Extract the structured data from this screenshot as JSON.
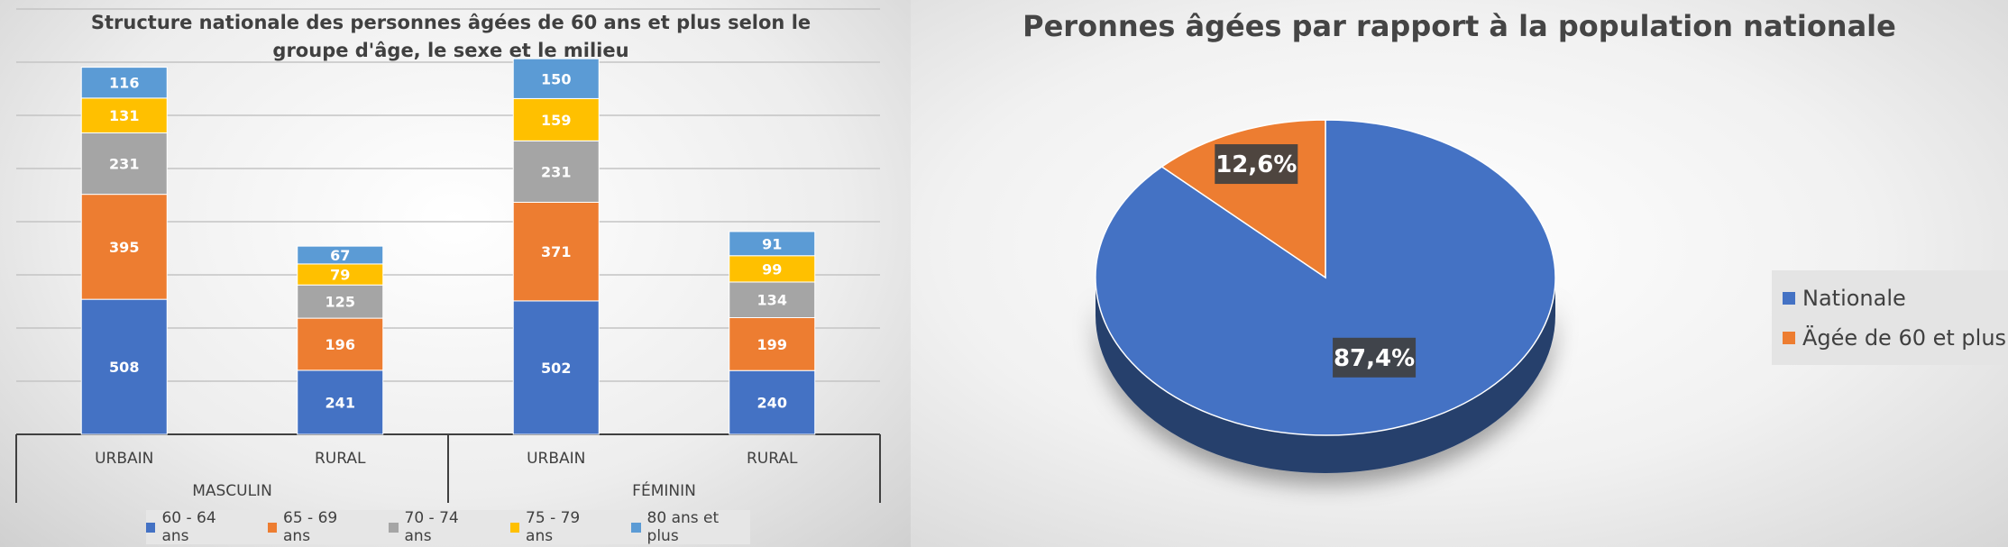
{
  "chart_data": [
    {
      "type": "bar",
      "stacked": true,
      "title": "Structure nationale des personnes âgées de 60 ans et plus selon le groupe d'âge, le sexe et le milieu",
      "categories": [
        "URBAIN",
        "RURAL",
        "URBAIN",
        "RURAL"
      ],
      "groups": [
        {
          "label": "MASCULIN",
          "categories": [
            0,
            1
          ]
        },
        {
          "label": "FÉMININ",
          "categories": [
            2,
            3
          ]
        }
      ],
      "series": [
        {
          "name": "60 - 64 ans",
          "color": "#4472C4",
          "values": [
            508,
            241,
            502,
            240
          ]
        },
        {
          "name": "65 - 69 ans",
          "color": "#ED7D31",
          "values": [
            395,
            196,
            371,
            199
          ]
        },
        {
          "name": "70 - 74 ans",
          "color": "#A5A5A5",
          "values": [
            231,
            125,
            231,
            134
          ]
        },
        {
          "name": "75 - 79 ans",
          "color": "#FFC000",
          "values": [
            131,
            79,
            159,
            99
          ]
        },
        {
          "name": "80 ans et plus",
          "color": "#5B9BD5",
          "values": [
            116,
            67,
            150,
            91
          ]
        }
      ],
      "ylim": [
        0,
        1600
      ],
      "grid": true,
      "legend_position": "bottom"
    },
    {
      "type": "pie",
      "style": "3d",
      "title": "Peronnes âgées par rapport à la population nationale",
      "slices": [
        {
          "name": "Nationale",
          "value": 87.4,
          "label": "87,4%",
          "color": "#4472C4"
        },
        {
          "name": "Ägée de 60 et plus",
          "value": 12.6,
          "label": "12,6%",
          "color": "#ED7D31"
        }
      ],
      "legend_position": "right"
    }
  ]
}
